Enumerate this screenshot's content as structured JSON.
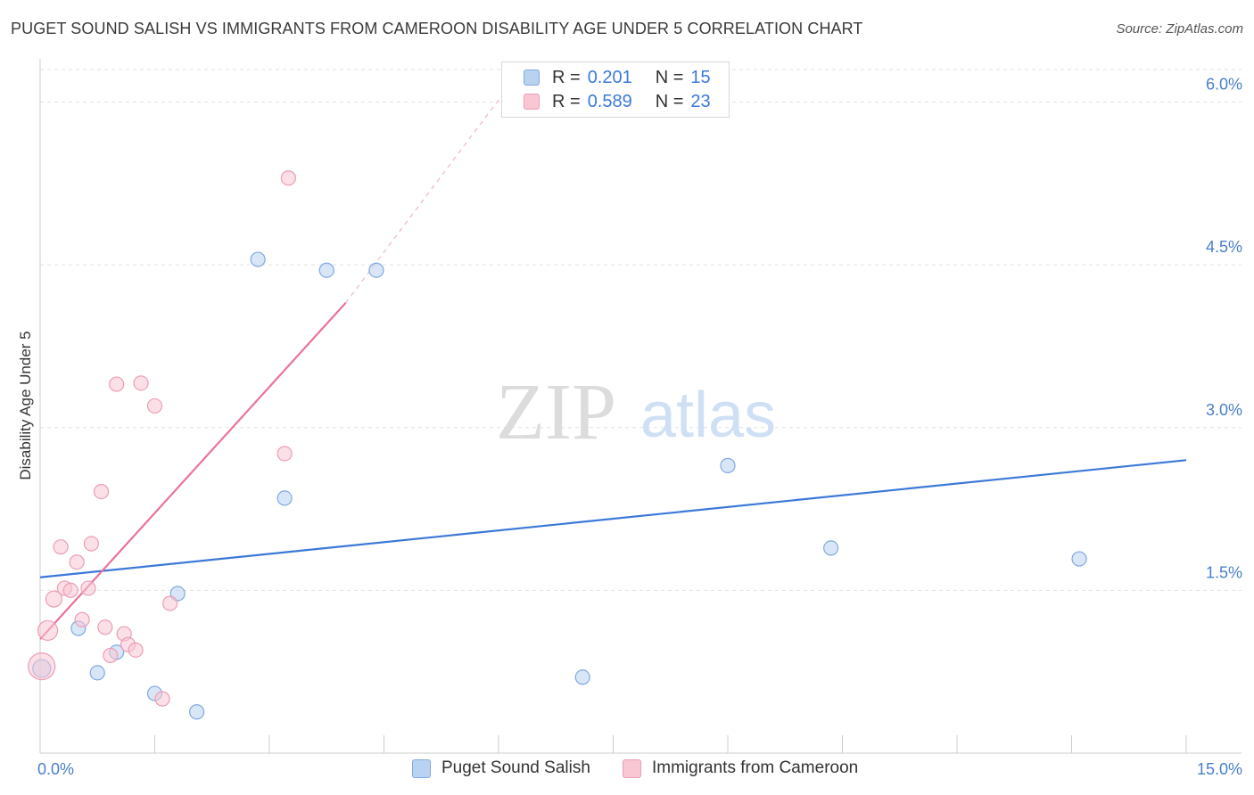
{
  "title": "PUGET SOUND SALISH VS IMMIGRANTS FROM CAMEROON DISABILITY AGE UNDER 5 CORRELATION CHART",
  "source": "Source: ZipAtlas.com",
  "watermark": {
    "zip": "ZIP",
    "atlas": "atlas"
  },
  "colors": {
    "blue": "#3b78d8",
    "pink": "#e8739a",
    "blue_fill": "#b9d2f2",
    "pink_fill": "#f9c6d4"
  },
  "legend_top": {
    "series1": {
      "r_label": "R =",
      "r_value": "0.201",
      "n_label": "N =",
      "n_value": "15"
    },
    "series2": {
      "r_label": "R =",
      "r_value": "0.589",
      "n_label": "N =",
      "n_value": "23"
    }
  },
  "legend_bottom": {
    "series1": "Puget Sound Salish",
    "series2": "Immigrants from Cameroon"
  },
  "chart_data": {
    "type": "scatter",
    "title": "PUGET SOUND SALISH VS IMMIGRANTS FROM CAMEROON DISABILITY AGE UNDER 5 CORRELATION CHART",
    "xlabel": "",
    "ylabel": "Disability Age Under 5",
    "xlim": [
      0,
      15
    ],
    "ylim": [
      0,
      6.3
    ],
    "x_tick_labels": [
      "0.0%",
      "15.0%"
    ],
    "y_ticks": [
      1.5,
      3.0,
      4.5,
      6.0
    ],
    "y_tick_labels": [
      "1.5%",
      "3.0%",
      "4.5%",
      "6.0%"
    ],
    "grid": true,
    "series": [
      {
        "name": "Puget Sound Salish",
        "color": "#3b78d8",
        "points": [
          {
            "x": 0.02,
            "y": 0.78
          },
          {
            "x": 0.5,
            "y": 1.15
          },
          {
            "x": 0.75,
            "y": 0.74
          },
          {
            "x": 1.0,
            "y": 0.93
          },
          {
            "x": 1.5,
            "y": 0.55
          },
          {
            "x": 1.8,
            "y": 1.47
          },
          {
            "x": 2.05,
            "y": 0.38
          },
          {
            "x": 2.85,
            "y": 4.55
          },
          {
            "x": 3.2,
            "y": 2.35
          },
          {
            "x": 3.75,
            "y": 4.45
          },
          {
            "x": 4.4,
            "y": 4.45
          },
          {
            "x": 7.1,
            "y": 0.7
          },
          {
            "x": 9.0,
            "y": 2.65
          },
          {
            "x": 10.35,
            "y": 1.89
          },
          {
            "x": 13.6,
            "y": 1.79
          }
        ],
        "trend": {
          "x0": 0,
          "y0": 1.62,
          "x1": 15,
          "y1": 2.7
        }
      },
      {
        "name": "Immigrants from Cameroon",
        "color": "#e8739a",
        "points": [
          {
            "x": 0.02,
            "y": 0.8
          },
          {
            "x": 0.1,
            "y": 1.13
          },
          {
            "x": 0.18,
            "y": 1.42
          },
          {
            "x": 0.27,
            "y": 1.9
          },
          {
            "x": 0.32,
            "y": 1.52
          },
          {
            "x": 0.4,
            "y": 1.5
          },
          {
            "x": 0.48,
            "y": 1.76
          },
          {
            "x": 0.55,
            "y": 1.23
          },
          {
            "x": 0.63,
            "y": 1.52
          },
          {
            "x": 0.67,
            "y": 1.93
          },
          {
            "x": 0.8,
            "y": 2.41
          },
          {
            "x": 0.85,
            "y": 1.16
          },
          {
            "x": 0.92,
            "y": 0.9
          },
          {
            "x": 1.0,
            "y": 3.4
          },
          {
            "x": 1.1,
            "y": 1.1
          },
          {
            "x": 1.15,
            "y": 1.0
          },
          {
            "x": 1.25,
            "y": 0.95
          },
          {
            "x": 1.32,
            "y": 3.41
          },
          {
            "x": 1.5,
            "y": 3.2
          },
          {
            "x": 1.6,
            "y": 0.5
          },
          {
            "x": 1.7,
            "y": 1.38
          },
          {
            "x": 3.2,
            "y": 2.76
          },
          {
            "x": 3.25,
            "y": 5.3
          }
        ],
        "trend": {
          "x0": 0,
          "y0": 1.05,
          "x1": 4.0,
          "y1": 4.15
        },
        "trend_extension": {
          "x0": 4.0,
          "y0": 4.15,
          "x1": 6.3,
          "y1": 6.3
        }
      }
    ]
  }
}
